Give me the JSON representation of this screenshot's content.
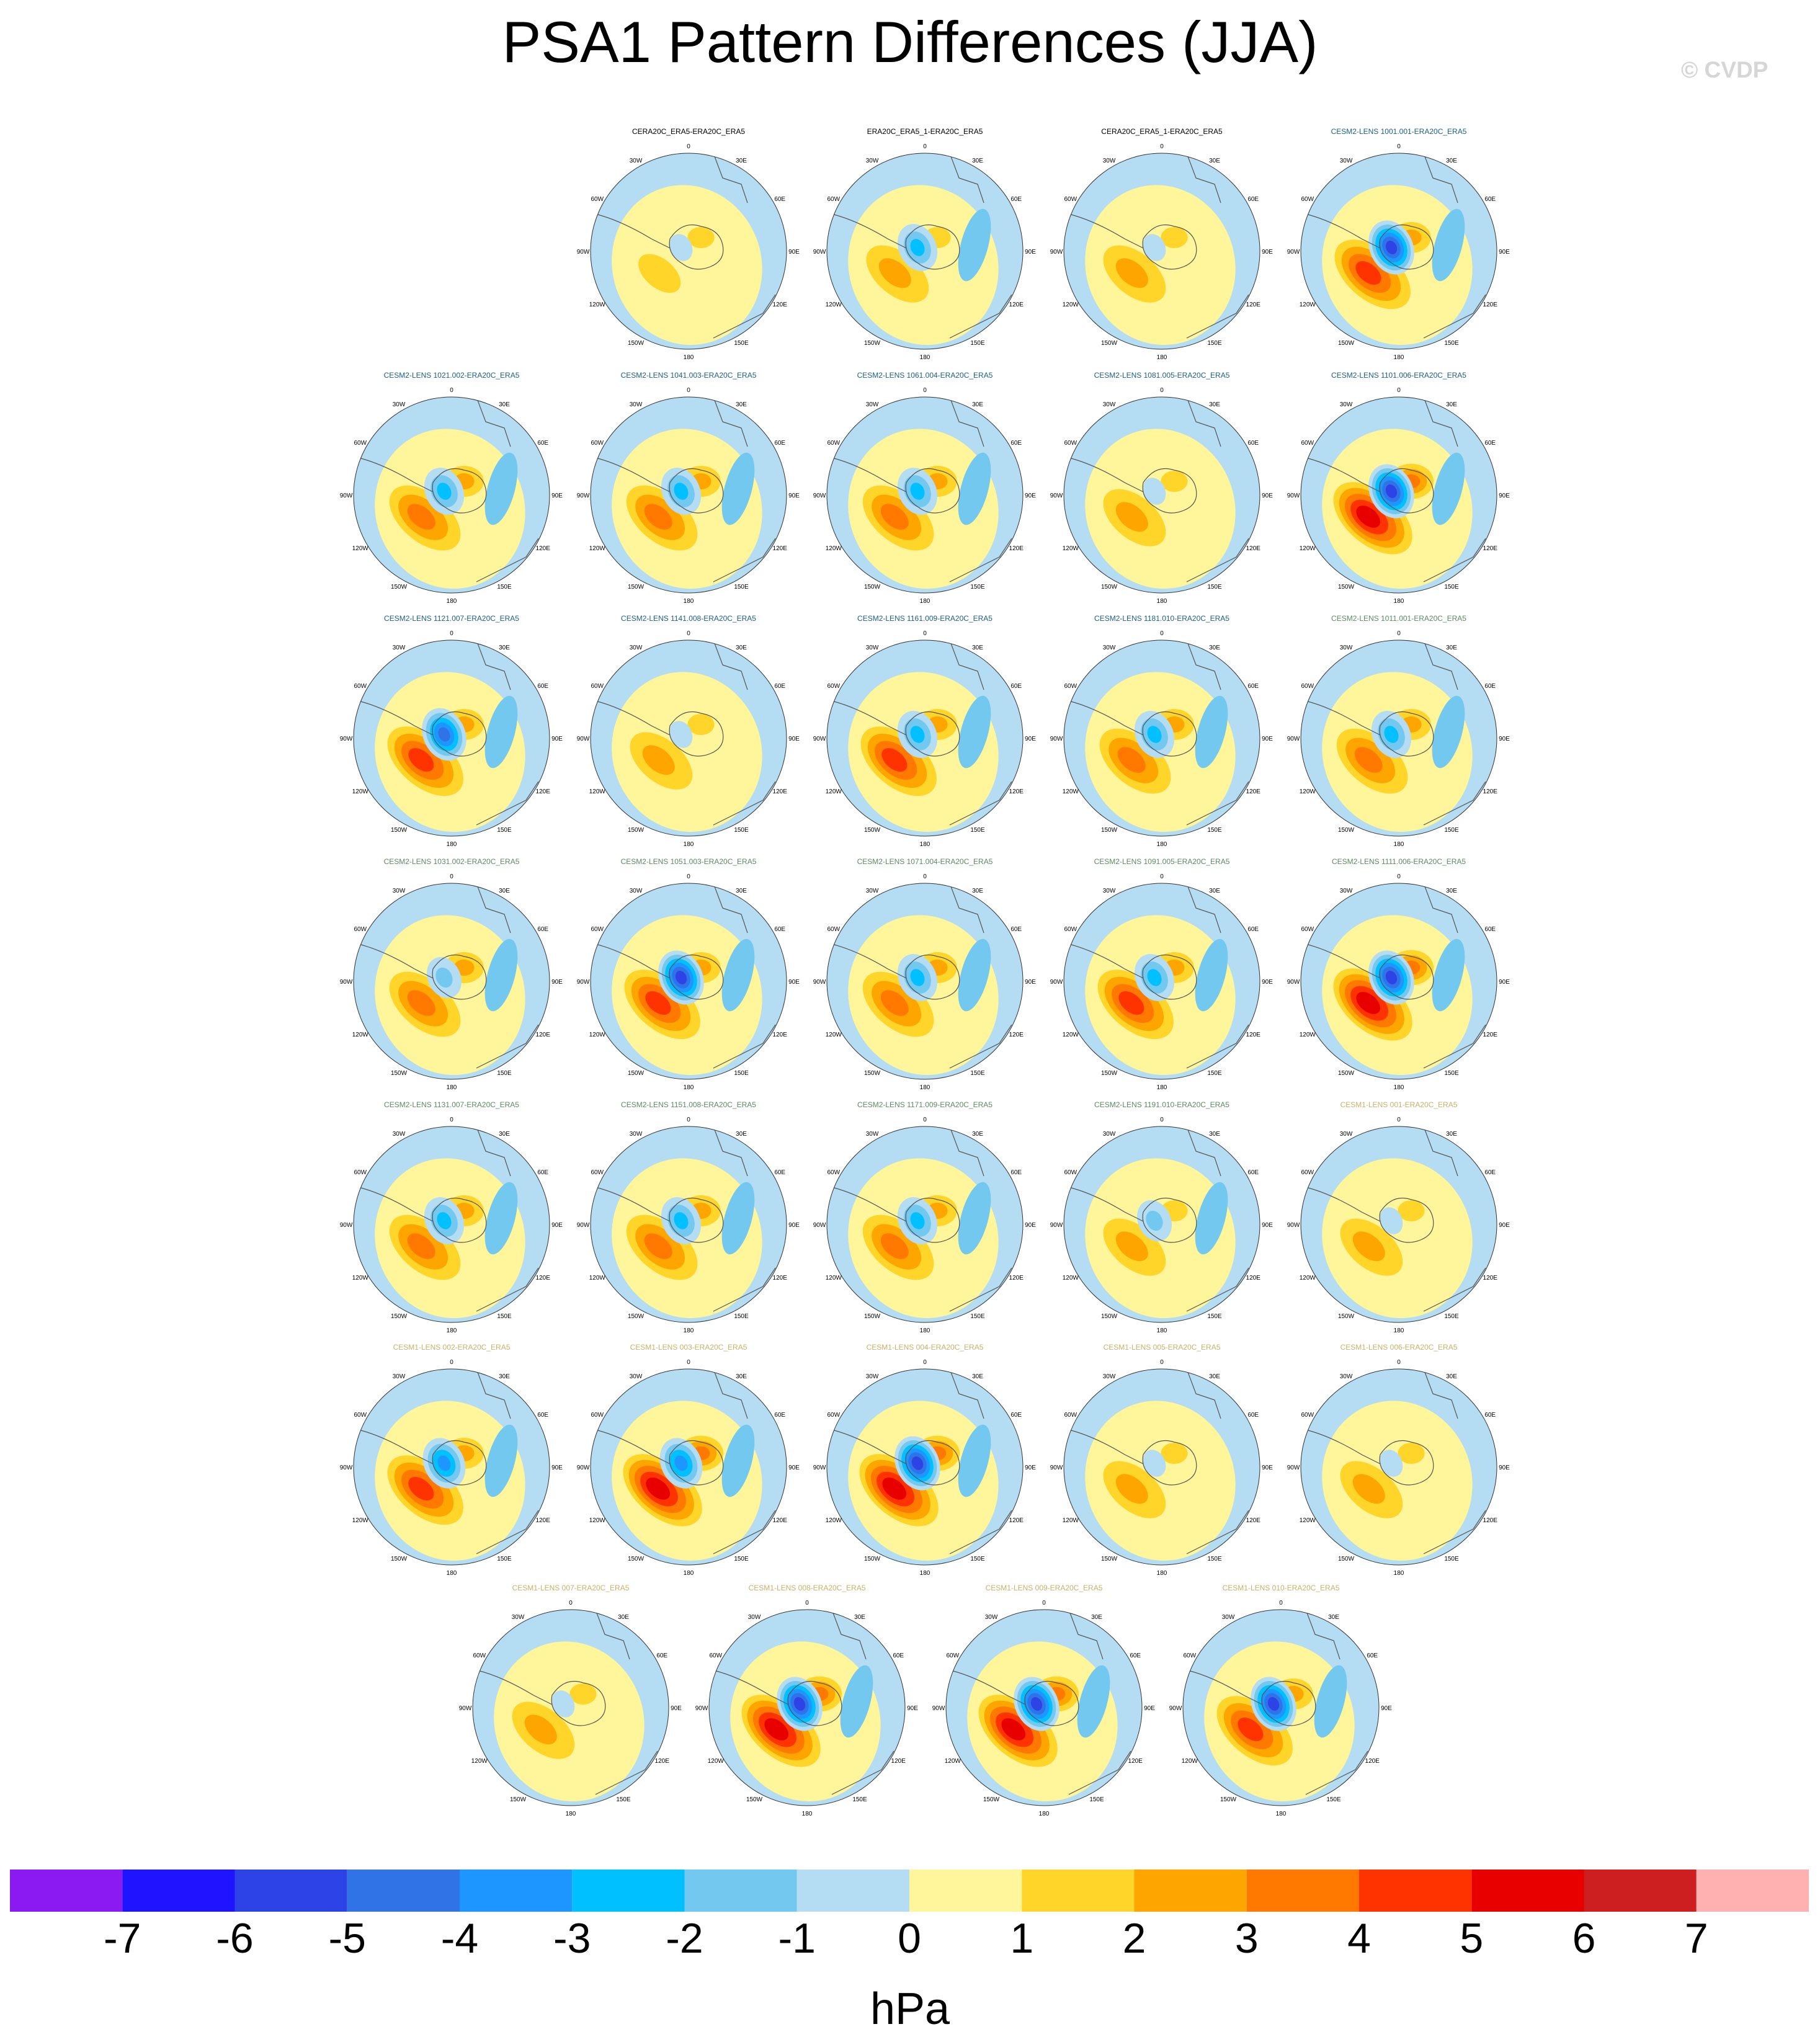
{
  "title": "PSA1 Pattern Differences (JJA)",
  "copyright": "© CVDP",
  "units": "hPa",
  "colors": {
    "title_era": "#000000",
    "title_cesm2": "#1a5f86",
    "title_cesm2_b": "#5d8a63",
    "title_cesm1": "#c8b26a",
    "land_outline": "#555555"
  },
  "colorbar": {
    "colors": [
      "#8b1af2",
      "#1e14ff",
      "#2e43e6",
      "#2f73e6",
      "#1e96ff",
      "#00c0ff",
      "#73c8f0",
      "#b4dcf2",
      "#fff59a",
      "#ffd52a",
      "#ffa500",
      "#ff7800",
      "#ff3300",
      "#e80000",
      "#cd1f1f",
      "#ffb1b1"
    ],
    "labels": [
      "-7",
      "-6",
      "-5",
      "-4",
      "-3",
      "-2",
      "-1",
      "0",
      "1",
      "2",
      "3",
      "4",
      "5",
      "6",
      "7"
    ]
  },
  "map_labels": {
    "top": "0",
    "bottom": "180",
    "lon_30w": "30W",
    "lon_30e": "30E",
    "lon_60w": "60W",
    "lon_60e": "60E",
    "lon_90w": "90W",
    "lon_90e": "90E",
    "lon_120w": "120W",
    "lon_120e": "120E",
    "lon_150w": "150W",
    "lon_150e": "150E"
  },
  "panels": [
    {
      "title": "CERA20C_ERA5-ERA20C_ERA5",
      "group": "era",
      "min": -1,
      "max": 1
    },
    {
      "title": "ERA20C_ERA5_1-ERA20C_ERA5",
      "group": "era",
      "min": -3,
      "max": 2
    },
    {
      "title": "CERA20C_ERA5_1-ERA20C_ERA5",
      "group": "era",
      "min": -1,
      "max": 2
    },
    {
      "title": "CESM2-LENS 1001.001-ERA20C_ERA5",
      "group": "cesm2",
      "min": -6,
      "max": 4
    },
    {
      "title": "CESM2-LENS 1021.002-ERA20C_ERA5",
      "group": "cesm2",
      "min": -3,
      "max": 3
    },
    {
      "title": "CESM2-LENS 1041.003-ERA20C_ERA5",
      "group": "cesm2",
      "min": -3,
      "max": 3
    },
    {
      "title": "CESM2-LENS 1061.004-ERA20C_ERA5",
      "group": "cesm2",
      "min": -3,
      "max": 3
    },
    {
      "title": "CESM2-LENS 1081.005-ERA20C_ERA5",
      "group": "cesm2",
      "min": -1,
      "max": 2
    },
    {
      "title": "CESM2-LENS 1101.006-ERA20C_ERA5",
      "group": "cesm2",
      "min": -6,
      "max": 5
    },
    {
      "title": "CESM2-LENS 1121.007-ERA20C_ERA5",
      "group": "cesm2",
      "min": -5,
      "max": 4
    },
    {
      "title": "CESM2-LENS 1141.008-ERA20C_ERA5",
      "group": "cesm2",
      "min": -1,
      "max": 2
    },
    {
      "title": "CESM2-LENS 1161.009-ERA20C_ERA5",
      "group": "cesm2",
      "min": -3,
      "max": 4
    },
    {
      "title": "CESM2-LENS 1181.010-ERA20C_ERA5",
      "group": "cesm2",
      "min": -3,
      "max": 3
    },
    {
      "title": "CESM2-LENS 1011.001-ERA20C_ERA5",
      "group": "cesm2b",
      "min": -3,
      "max": 3
    },
    {
      "title": "CESM2-LENS 1031.002-ERA20C_ERA5",
      "group": "cesm2b",
      "min": -2,
      "max": 3
    },
    {
      "title": "CESM2-LENS 1051.003-ERA20C_ERA5",
      "group": "cesm2b",
      "min": -6,
      "max": 4
    },
    {
      "title": "CESM2-LENS 1071.004-ERA20C_ERA5",
      "group": "cesm2b",
      "min": -3,
      "max": 3
    },
    {
      "title": "CESM2-LENS 1091.005-ERA20C_ERA5",
      "group": "cesm2b",
      "min": -3,
      "max": 4
    },
    {
      "title": "CESM2-LENS 1111.006-ERA20C_ERA5",
      "group": "cesm2b",
      "min": -6,
      "max": 5
    },
    {
      "title": "CESM2-LENS 1131.007-ERA20C_ERA5",
      "group": "cesm2b",
      "min": -3,
      "max": 3
    },
    {
      "title": "CESM2-LENS 1151.008-ERA20C_ERA5",
      "group": "cesm2b",
      "min": -3,
      "max": 3
    },
    {
      "title": "CESM2-LENS 1171.009-ERA20C_ERA5",
      "group": "cesm2b",
      "min": -3,
      "max": 3
    },
    {
      "title": "CESM2-LENS 1191.010-ERA20C_ERA5",
      "group": "cesm2b",
      "min": -2,
      "max": 2
    },
    {
      "title": "CESM1-LENS 001-ERA20C_ERA5",
      "group": "cesm1",
      "min": -1,
      "max": 2
    },
    {
      "title": "CESM1-LENS 002-ERA20C_ERA5",
      "group": "cesm1",
      "min": -4,
      "max": 4
    },
    {
      "title": "CESM1-LENS 003-ERA20C_ERA5",
      "group": "cesm1",
      "min": -4,
      "max": 5
    },
    {
      "title": "CESM1-LENS 004-ERA20C_ERA5",
      "group": "cesm1",
      "min": -6,
      "max": 5
    },
    {
      "title": "CESM1-LENS 005-ERA20C_ERA5",
      "group": "cesm1",
      "min": -1,
      "max": 2
    },
    {
      "title": "CESM1-LENS 006-ERA20C_ERA5",
      "group": "cesm1",
      "min": -1,
      "max": 2
    },
    {
      "title": "CESM1-LENS 007-ERA20C_ERA5",
      "group": "cesm1",
      "min": -1,
      "max": 2
    },
    {
      "title": "CESM1-LENS 008-ERA20C_ERA5",
      "group": "cesm1",
      "min": -6,
      "max": 5
    },
    {
      "title": "CESM1-LENS 009-ERA20C_ERA5",
      "group": "cesm1",
      "min": -6,
      "max": 5
    },
    {
      "title": "CESM1-LENS 010-ERA20C_ERA5",
      "group": "cesm1",
      "min": -6,
      "max": 4
    }
  ]
}
